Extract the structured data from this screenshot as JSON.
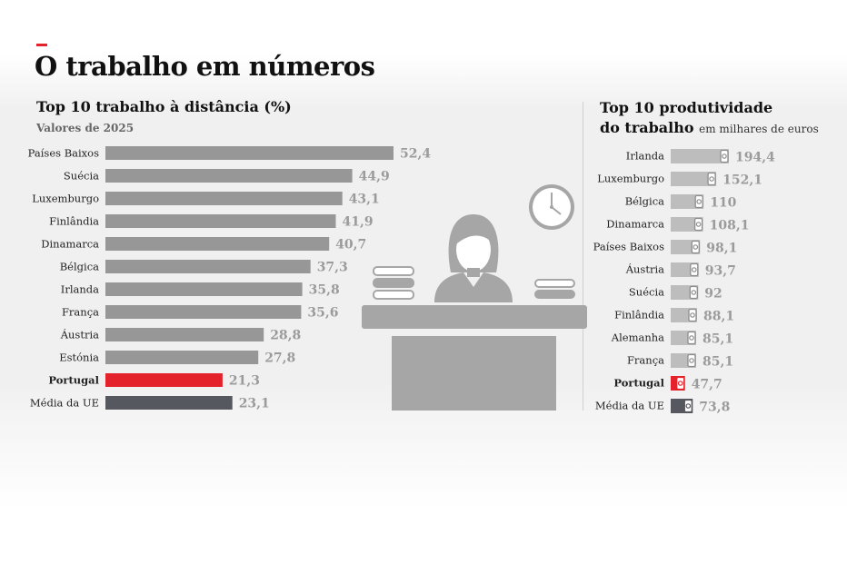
{
  "page": {
    "title": "O trabalho em números"
  },
  "chart_data": [
    {
      "type": "bar",
      "orientation": "horizontal",
      "title": "Top 10 trabalho à distância (%)",
      "subtitle": "Valores de 2025",
      "categories": [
        "Países Baixos",
        "Suécia",
        "Luxemburgo",
        "Finlândia",
        "Dinamarca",
        "Bélgica",
        "Irlanda",
        "França",
        "Áustria",
        "Estónia",
        "Portugal",
        "Média da UE"
      ],
      "values": [
        52.4,
        44.9,
        43.1,
        41.9,
        40.7,
        37.3,
        35.8,
        35.6,
        28.8,
        27.8,
        21.3,
        23.1
      ],
      "value_labels": [
        "52,4",
        "44,9",
        "43,1",
        "41,9",
        "40,7",
        "37,3",
        "35,8",
        "35,6",
        "28,8",
        "27,8",
        "21,3",
        "23,1"
      ],
      "highlight": {
        "Portugal": "#e3222b",
        "Média da UE": "#55585e"
      },
      "bar_color": "#979797",
      "xlim": [
        0,
        52.4
      ]
    },
    {
      "type": "bar",
      "orientation": "horizontal",
      "title": "Top 10 produtividade do trabalho",
      "title_line1": "Top 10 produtividade",
      "title_line2": "do trabalho",
      "unit": "em milhares de euros",
      "categories": [
        "Irlanda",
        "Luxemburgo",
        "Bélgica",
        "Dinamarca",
        "Países Baixos",
        "Áustria",
        "Suécia",
        "Finlândia",
        "Alemanha",
        "França",
        "Portugal",
        "Média da UE"
      ],
      "values": [
        194.4,
        152.1,
        110,
        108.1,
        98.1,
        93.7,
        92,
        88.1,
        85.1,
        85.1,
        47.7,
        73.8
      ],
      "value_labels": [
        "194,4",
        "152,1",
        "110",
        "108,1",
        "98,1",
        "93,7",
        "92",
        "88,1",
        "85,1",
        "85,1",
        "47,7",
        "73,8"
      ],
      "highlight": {
        "Portugal": "#e3222b",
        "Média da UE": "#55585e"
      },
      "bar_color": "#bdbdbd",
      "xlim": [
        0,
        194.4
      ]
    }
  ],
  "illustration": {
    "icons": [
      "clock-icon",
      "person-icon",
      "desk-icon",
      "paper-stack-icon"
    ],
    "colors": {
      "fill": "#a6a6a6",
      "clock_face": "#ffffff"
    }
  }
}
